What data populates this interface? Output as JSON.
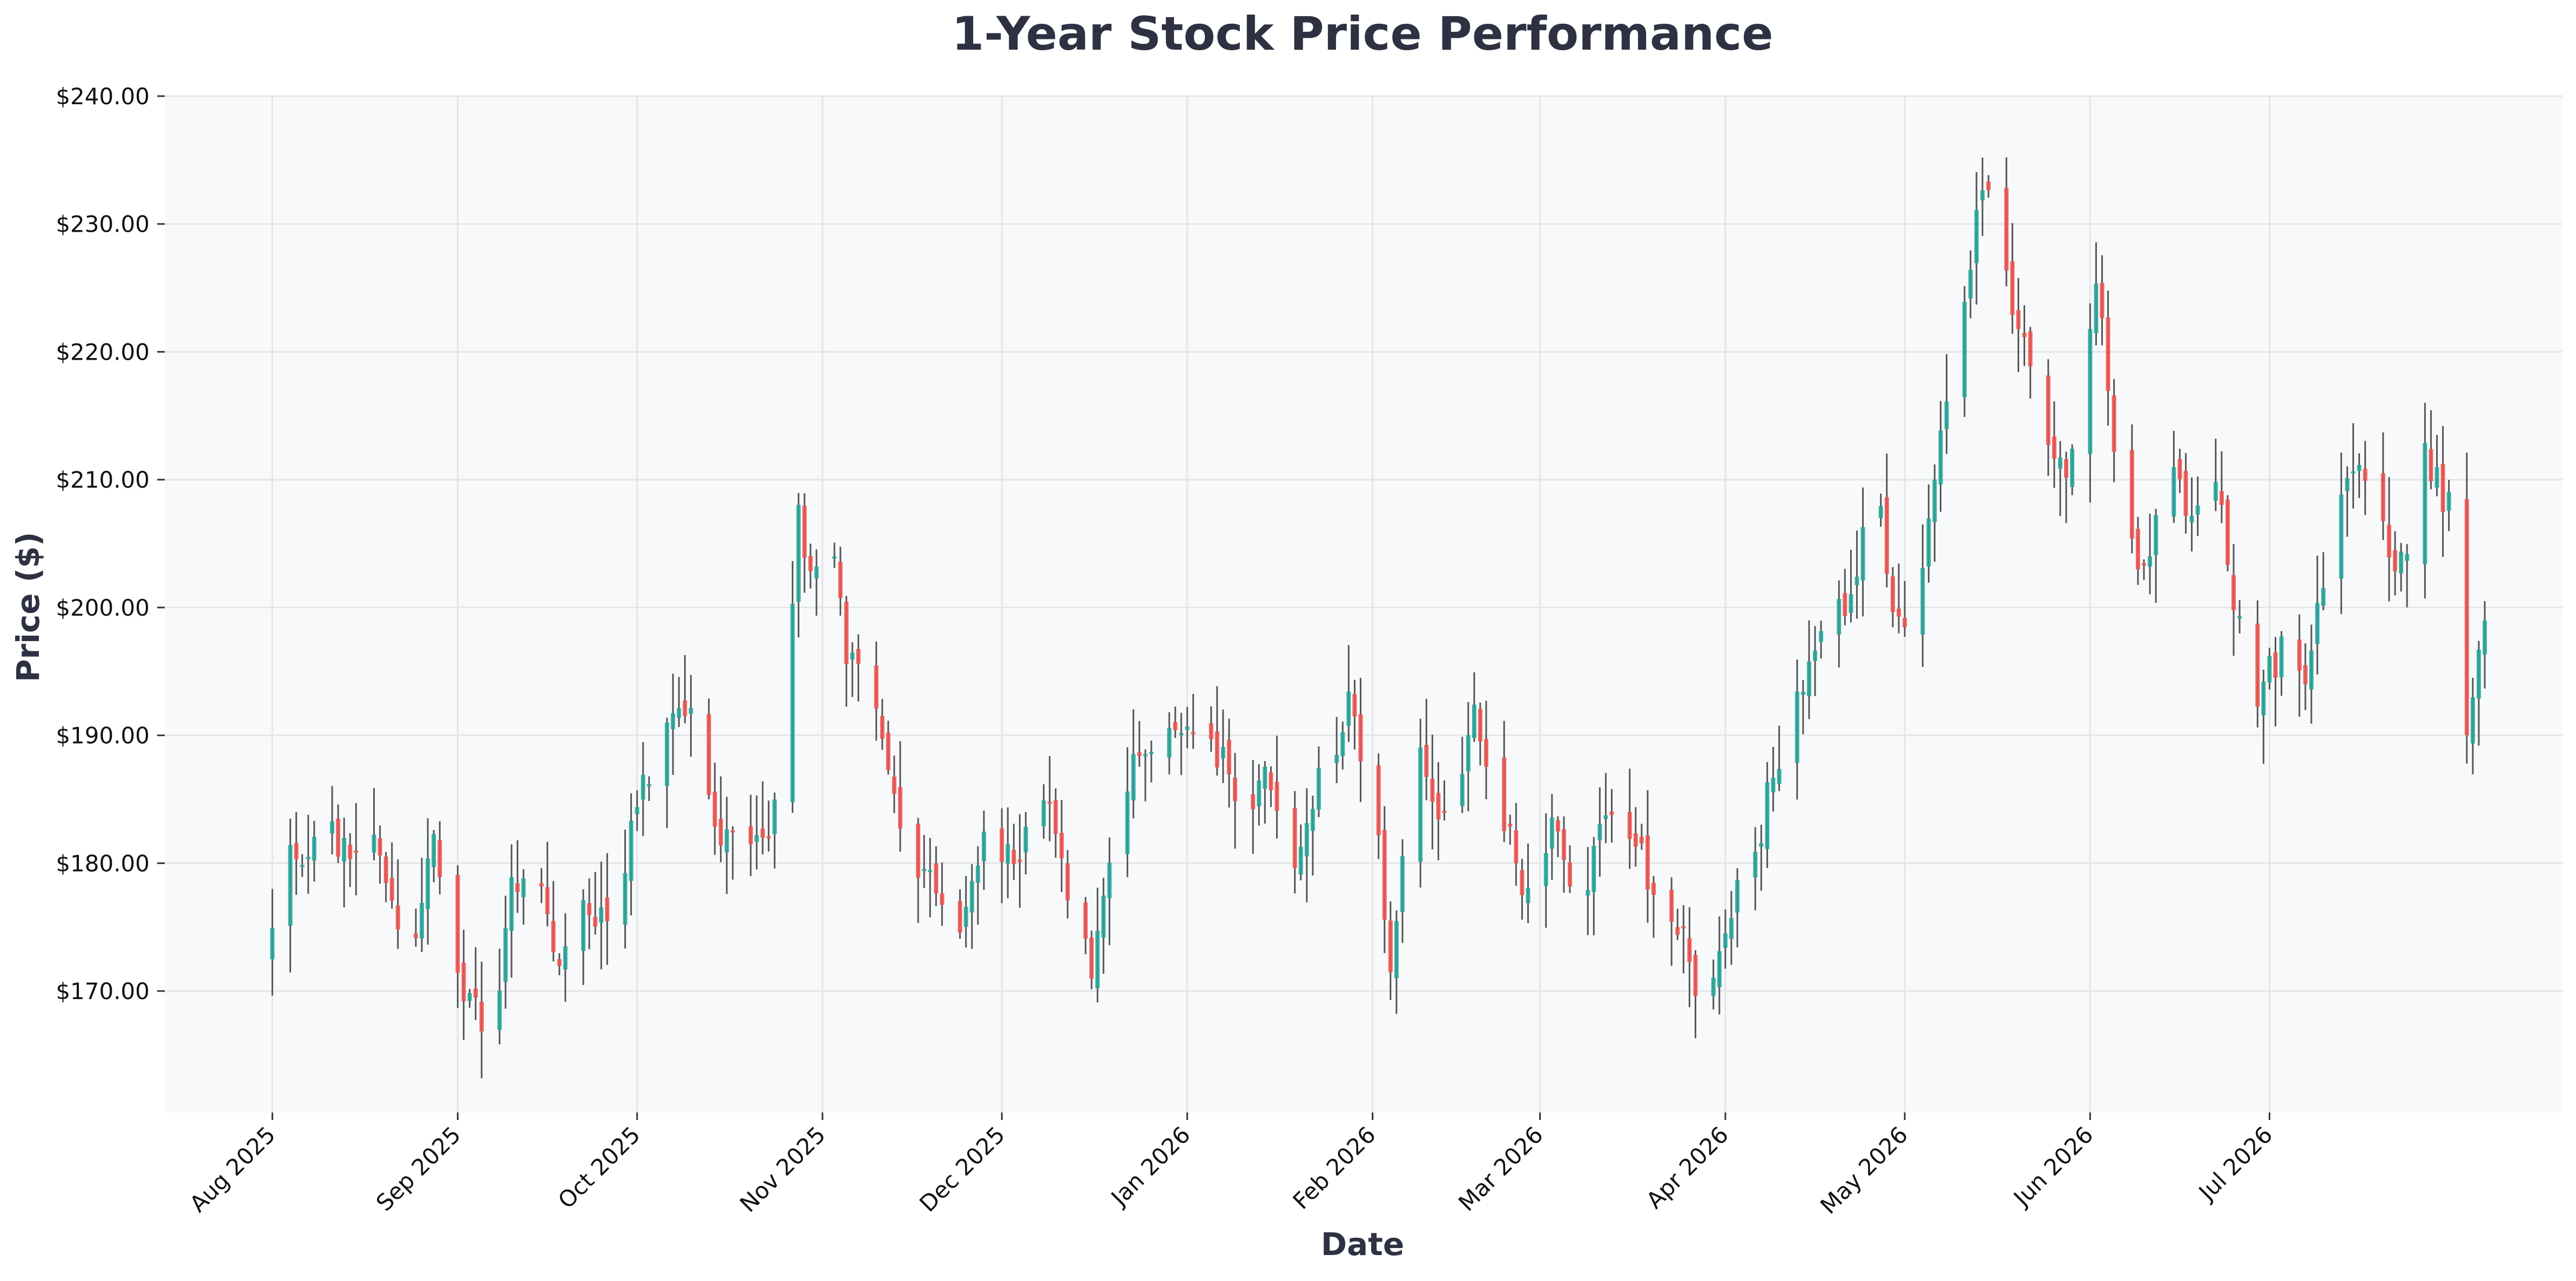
{
  "chart_data": {
    "type": "candlestick",
    "title": "1-Year Stock Price Performance",
    "xlabel": "Date",
    "ylabel": "Price ($)",
    "ylim": [
      160.5,
      240.0
    ],
    "yticks": [
      170,
      180,
      190,
      200,
      210,
      220,
      230,
      240
    ],
    "ytick_labels": [
      "$170.00",
      "$180.00",
      "$190.00",
      "$200.00",
      "$210.00",
      "$220.00",
      "$230.00",
      "$240.00"
    ],
    "x_start": "2025-07-14",
    "x_end": "2026-08-19",
    "xticks": [
      "2025-08-01",
      "2025-09-01",
      "2025-10-01",
      "2025-11-01",
      "2025-12-01",
      "2026-01-01",
      "2026-02-01",
      "2026-03-01",
      "2026-04-01",
      "2026-05-01",
      "2026-06-01",
      "2026-07-01"
    ],
    "xtick_labels": [
      "Aug 2025",
      "Sep 2025",
      "Oct 2025",
      "Nov 2025",
      "Dec 2025",
      "Jan 2026",
      "Feb 2026",
      "Mar 2026",
      "Apr 2026",
      "May 2026",
      "Jun 2026",
      "Jul 2026"
    ],
    "grid": true,
    "colors": {
      "up": "#26a69a",
      "down": "#ef5350",
      "wick": "#555555",
      "plot_bg": "#f8f9fa",
      "grid": "#e3e5e8",
      "text": "#2d3142"
    },
    "anchors": [
      [
        "2025-08-01",
        175
      ],
      [
        "2025-08-04",
        180
      ],
      [
        "2025-08-08",
        182
      ],
      [
        "2025-08-13",
        182
      ],
      [
        "2025-08-18",
        181
      ],
      [
        "2025-08-21",
        175.5
      ],
      [
        "2025-08-25",
        175
      ],
      [
        "2025-08-28",
        181.5
      ],
      [
        "2025-09-01",
        171
      ],
      [
        "2025-09-05",
        168
      ],
      [
        "2025-09-08",
        170.5
      ],
      [
        "2025-09-10",
        177.5
      ],
      [
        "2025-09-15",
        177
      ],
      [
        "2025-09-18",
        173
      ],
      [
        "2025-09-23",
        176.5
      ],
      [
        "2025-09-27",
        177
      ],
      [
        "2025-10-02",
        186.5
      ],
      [
        "2025-10-06",
        189.5
      ],
      [
        "2025-10-10",
        192.5
      ],
      [
        "2025-10-14",
        181.5
      ],
      [
        "2025-10-18",
        183
      ],
      [
        "2025-10-22",
        181
      ],
      [
        "2025-10-26",
        191
      ],
      [
        "2025-10-28",
        207
      ],
      [
        "2025-10-30",
        203
      ],
      [
        "2025-11-02",
        207.5
      ],
      [
        "2025-11-05",
        196
      ],
      [
        "2025-11-08",
        195.5
      ],
      [
        "2025-11-12",
        187
      ],
      [
        "2025-11-16",
        181
      ],
      [
        "2025-11-20",
        178.5
      ],
      [
        "2025-11-24",
        176
      ],
      [
        "2025-11-28",
        182
      ],
      [
        "2025-12-03",
        180
      ],
      [
        "2025-12-08",
        185.5
      ],
      [
        "2025-12-12",
        178
      ],
      [
        "2025-12-16",
        171
      ],
      [
        "2025-12-20",
        181
      ],
      [
        "2025-12-24",
        189
      ],
      [
        "2025-12-31",
        190
      ],
      [
        "2026-01-05",
        190
      ],
      [
        "2026-01-10",
        185
      ],
      [
        "2026-01-15",
        187
      ],
      [
        "2026-01-19",
        181
      ],
      [
        "2026-01-23",
        186
      ],
      [
        "2026-01-28",
        192
      ],
      [
        "2026-02-01",
        186
      ],
      [
        "2026-02-04",
        172
      ],
      [
        "2026-02-08",
        190
      ],
      [
        "2026-02-12",
        182
      ],
      [
        "2026-02-15",
        187
      ],
      [
        "2026-02-18",
        191.5
      ],
      [
        "2026-02-23",
        183
      ],
      [
        "2026-02-27",
        177
      ],
      [
        "2026-03-03",
        182
      ],
      [
        "2026-03-08",
        178
      ],
      [
        "2026-03-13",
        184
      ],
      [
        "2026-03-18",
        180
      ],
      [
        "2026-03-22",
        174
      ],
      [
        "2026-03-25",
        176
      ],
      [
        "2026-03-28",
        166
      ],
      [
        "2026-04-02",
        177
      ],
      [
        "2026-04-07",
        183
      ],
      [
        "2026-04-12",
        192
      ],
      [
        "2026-04-17",
        199
      ],
      [
        "2026-04-22",
        201
      ],
      [
        "2026-04-26",
        210
      ],
      [
        "2026-04-29",
        200
      ],
      [
        "2026-05-03",
        197.5
      ],
      [
        "2026-05-07",
        215
      ],
      [
        "2026-05-11",
        223
      ],
      [
        "2026-05-14",
        234
      ],
      [
        "2026-05-17",
        226
      ],
      [
        "2026-05-21",
        221
      ],
      [
        "2026-05-25",
        212
      ],
      [
        "2026-05-29",
        211
      ],
      [
        "2026-06-02",
        225
      ],
      [
        "2026-06-06",
        210
      ],
      [
        "2026-06-10",
        202
      ],
      [
        "2026-06-14",
        211
      ],
      [
        "2026-06-18",
        207
      ],
      [
        "2026-06-22",
        210
      ],
      [
        "2026-06-25",
        200
      ],
      [
        "2026-06-29",
        193
      ],
      [
        "2026-07-03",
        197
      ],
      [
        "2026-07-07",
        195
      ],
      [
        "2026-07-11",
        204
      ],
      [
        "2026-07-15",
        212
      ],
      [
        "2026-07-19",
        208
      ],
      [
        "2026-07-23",
        203
      ],
      [
        "2026-07-27",
        212
      ],
      [
        "2026-07-31",
        208
      ],
      [
        "2026-08-03",
        191
      ],
      [
        "2026-08-06",
        200
      ]
    ]
  }
}
